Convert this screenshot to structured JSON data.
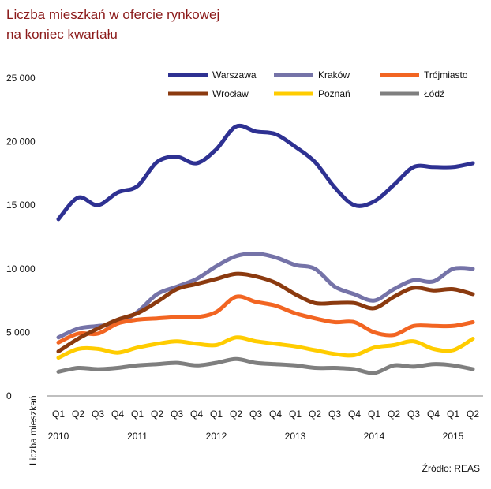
{
  "chart_data": {
    "type": "line",
    "title_line1": "Liczba mieszkań w ofercie rynkowej",
    "title_line2": "na koniec kwartału",
    "ylabel": "Liczba mieszkań",
    "xlabel": "",
    "ylim": [
      0,
      25000
    ],
    "yticks": [
      0,
      5000,
      10000,
      15000,
      20000,
      25000
    ],
    "ytick_labels": [
      "0",
      "5 000",
      "10 000",
      "15 000",
      "20 000",
      "25 000"
    ],
    "categories": [
      "Q1 2010",
      "Q2 2010",
      "Q3 2010",
      "Q4 2010",
      "Q1 2011",
      "Q2 2011",
      "Q3 2011",
      "Q4 2011",
      "Q1 2012",
      "Q2 2012",
      "Q3 2012",
      "Q4 2012",
      "Q1 2013",
      "Q2 2013",
      "Q3 2013",
      "Q4 2013",
      "Q1 2014",
      "Q2 2014",
      "Q3 2014",
      "Q4 2014",
      "Q1 2015",
      "Q2 2015"
    ],
    "quarter_labels": [
      "Q1",
      "Q2",
      "Q3",
      "Q4",
      "Q1",
      "Q2",
      "Q3",
      "Q4",
      "Q1",
      "Q2",
      "Q3",
      "Q4",
      "Q1",
      "Q2",
      "Q3",
      "Q4",
      "Q1",
      "Q2",
      "Q3",
      "Q4",
      "Q1",
      "Q2"
    ],
    "years": [
      {
        "label": "2010",
        "at_quarter": 0
      },
      {
        "label": "2011",
        "at_quarter": 4
      },
      {
        "label": "2012",
        "at_quarter": 8
      },
      {
        "label": "2013",
        "at_quarter": 12
      },
      {
        "label": "2014",
        "at_quarter": 16
      },
      {
        "label": "2015",
        "at_quarter": 20
      }
    ],
    "series": [
      {
        "name": "Warszawa",
        "color": "#2e3192",
        "values": [
          13900,
          15600,
          15000,
          16000,
          16500,
          18400,
          18800,
          18300,
          19400,
          21200,
          20800,
          20600,
          19600,
          18400,
          16400,
          15000,
          15300,
          16600,
          18000,
          18000,
          18000,
          18300
        ]
      },
      {
        "name": "Kraków",
        "color": "#7573a8",
        "values": [
          4600,
          5300,
          5500,
          5700,
          6600,
          8000,
          8600,
          9200,
          10200,
          11000,
          11200,
          10900,
          10300,
          10000,
          8600,
          8000,
          7500,
          8400,
          9100,
          9000,
          10000,
          10000
        ]
      },
      {
        "name": "Trójmiasto",
        "color": "#f26522",
        "values": [
          4200,
          4900,
          4900,
          5700,
          6000,
          6100,
          6200,
          6200,
          6600,
          7800,
          7400,
          7100,
          6500,
          6100,
          5800,
          5800,
          5000,
          4800,
          5500,
          5500,
          5500,
          5800
        ]
      },
      {
        "name": "Wrocław",
        "color": "#8b3a0f",
        "values": [
          3500,
          4500,
          5300,
          6000,
          6500,
          7400,
          8400,
          8800,
          9200,
          9600,
          9400,
          8900,
          8000,
          7300,
          7300,
          7300,
          6900,
          7800,
          8500,
          8300,
          8400,
          8000
        ]
      },
      {
        "name": "Poznań",
        "color": "#ffcc00",
        "values": [
          3000,
          3700,
          3700,
          3400,
          3800,
          4100,
          4300,
          4100,
          4000,
          4600,
          4300,
          4100,
          3900,
          3600,
          3300,
          3200,
          3800,
          4000,
          4300,
          3700,
          3600,
          4500
        ]
      },
      {
        "name": "Łódź",
        "color": "#7f7f7f",
        "values": [
          1900,
          2200,
          2100,
          2200,
          2400,
          2500,
          2600,
          2400,
          2600,
          2900,
          2600,
          2500,
          2400,
          2200,
          2200,
          2100,
          1800,
          2400,
          2300,
          2500,
          2400,
          2100
        ]
      }
    ],
    "legend_placement": "top, 3 columns x 2 rows",
    "grid": false,
    "source": "Źródło: REAS"
  }
}
